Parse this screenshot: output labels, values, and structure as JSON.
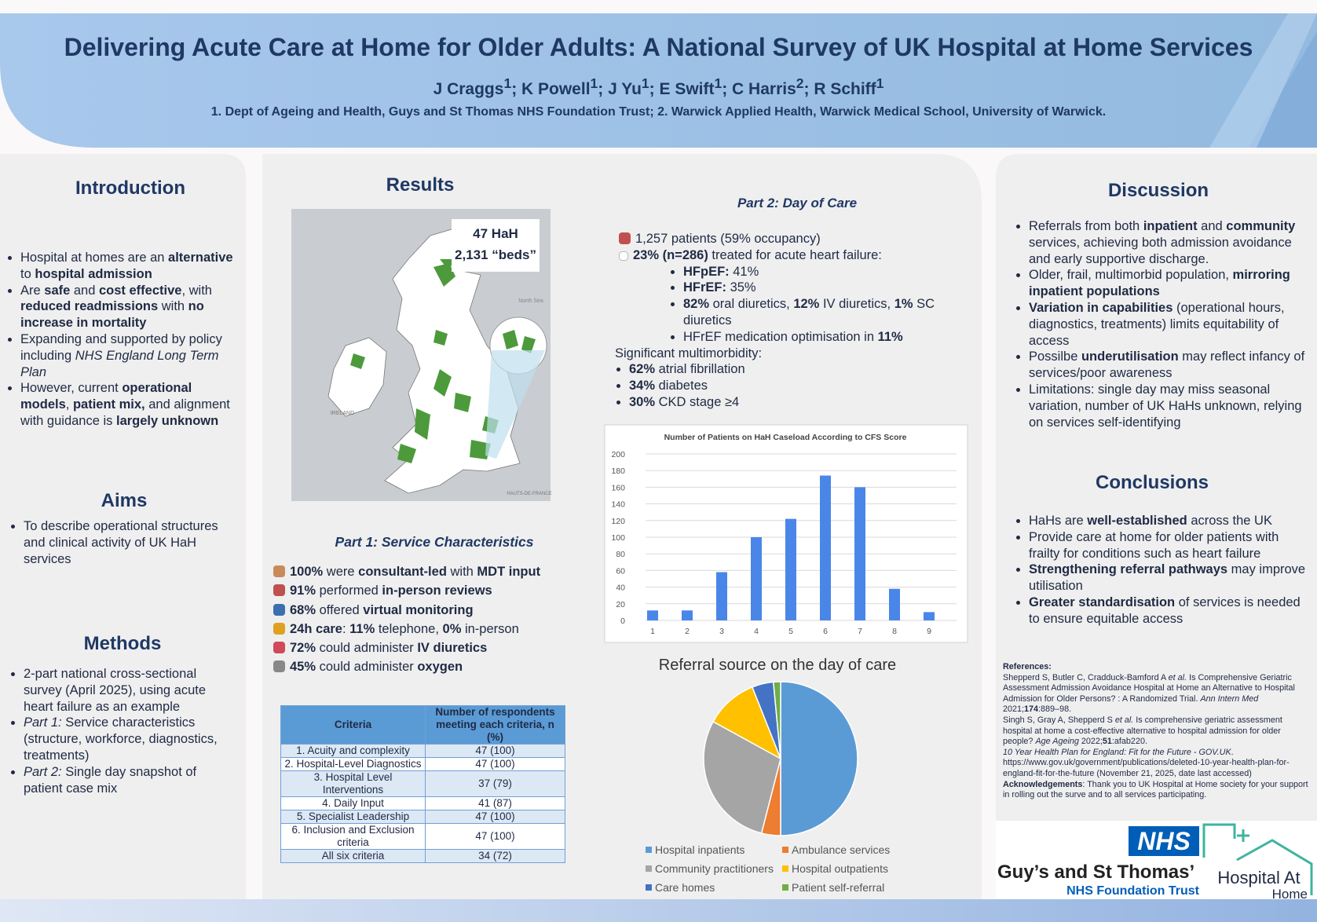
{
  "header": {
    "title": "Delivering Acute Care at Home for Older Adults: A National Survey of UK Hospital at Home Services",
    "authors": [
      "J Craggs",
      {
        "sup": "1"
      },
      "; K Powell",
      {
        "sup": "1"
      },
      "; J Yu",
      {
        "sup": "1"
      },
      "; E Swift",
      {
        "sup": "1"
      },
      "; C Harris",
      {
        "sup": "2"
      },
      "; R Schiff",
      {
        "sup": "1"
      }
    ],
    "affiliations": "1. Dept of Ageing and Health, Guys and St Thomas NHS Foundation Trust; 2. Warwick Applied Health, Warwick Medical School, University of Warwick."
  },
  "introduction": {
    "heading": "Introduction",
    "bullets": [
      [
        "Hospital at homes are an ",
        {
          "b": "alternative"
        },
        " to ",
        {
          "b": "hospital admission"
        }
      ],
      [
        "Are ",
        {
          "b": "safe"
        },
        " and ",
        {
          "b": "cost effective"
        },
        ", with ",
        {
          "b": "reduced readmissions"
        },
        " with ",
        {
          "b": "no increase in mortality"
        }
      ],
      [
        "Expanding and supported by policy including ",
        {
          "i": "NHS England Long Term Plan"
        }
      ],
      [
        "However, current ",
        {
          "b": "operational models"
        },
        ", ",
        {
          "b": "patient mix,"
        },
        " and alignment with guidance is ",
        {
          "b": "largely unknown"
        }
      ]
    ]
  },
  "aims": {
    "heading": "Aims",
    "bullets": [
      [
        "To describe operational structures and clinical activity of UK HaH services"
      ]
    ]
  },
  "methods": {
    "heading": "Methods",
    "bullets": [
      [
        "2-part national cross-sectional survey (April 2025), using acute heart failure as an example"
      ],
      [
        {
          "i": "Part 1:"
        },
        " Service characteristics (structure, workforce, diagnostics, treatments)"
      ],
      [
        {
          "i": "Part 2:"
        },
        " Single day snapshot of patient case mix"
      ]
    ]
  },
  "results": {
    "heading": "Results",
    "map": {
      "line1": "47 HaH",
      "line2": "2,131  “beds”",
      "labels": [
        "North Sea",
        "IRELAND",
        "HAUTS-DE-FRANCE"
      ]
    },
    "part1": {
      "heading": "Part 1: Service Characteristics",
      "items": [
        [
          {
            "b": "100%"
          },
          " were ",
          {
            "b": "consultant-led"
          },
          " with ",
          {
            "b": "MDT input"
          }
        ],
        [
          {
            "b": "91%"
          },
          " performed ",
          {
            "b": "in-person reviews"
          }
        ],
        [
          {
            "b": "68%"
          },
          " offered ",
          {
            "b": "virtual monitoring"
          }
        ],
        [
          {
            "b": "24h care"
          },
          ": ",
          {
            "b": "11%"
          },
          " telephone,  ",
          {
            "b": "0%"
          },
          " in-person"
        ],
        [
          {
            "b": "72%"
          },
          " could administer ",
          {
            "b": "IV diuretics"
          }
        ],
        [
          {
            "b": "45%"
          },
          " could administer ",
          {
            "b": "oxygen"
          }
        ]
      ]
    },
    "table": {
      "header": [
        "Criteria",
        "Number of respondents meeting each criteria, n (%)"
      ],
      "rows": [
        [
          "1. Acuity and complexity",
          "47 (100)"
        ],
        [
          "2. Hospital-Level Diagnostics",
          "47 (100)"
        ],
        [
          "3. Hospital Level Interventions",
          "37 (79)"
        ],
        [
          "4. Daily Input",
          "41 (87)"
        ],
        [
          "5. Specialist Leadership",
          "47 (100)"
        ],
        [
          "6. Inclusion and Exclusion criteria",
          "47 (100)"
        ],
        [
          "All six criteria",
          "34 (72)"
        ]
      ]
    },
    "part2": {
      "heading": "Part 2: Day of Care",
      "patients": [
        "1,257 patients (59% occupancy)"
      ],
      "heart_failure": [
        {
          "b": "23% (n=286)"
        },
        " treated for acute heart failure:"
      ],
      "heart_failure_items": [
        [
          {
            "b": "HFpEF:"
          },
          " 41%"
        ],
        [
          {
            "b": "HFrEF:"
          },
          " 35%"
        ],
        [
          {
            "b": "82%"
          },
          " oral diuretics, ",
          {
            "b": "12%"
          },
          " IV diuretics, ",
          {
            "b": "1%"
          },
          " SC diuretics"
        ],
        [
          "HFrEF medication optimisation in ",
          {
            "b": "11%"
          }
        ]
      ],
      "multimorbidity_heading": "Significant multimorbidity:",
      "multimorbidity": [
        [
          {
            "b": "62%"
          },
          " atrial fibrillation"
        ],
        [
          {
            "b": "34%"
          },
          " diabetes"
        ],
        [
          {
            "b": "30%"
          },
          " CKD stage ≥4"
        ]
      ]
    }
  },
  "chart_data": [
    {
      "type": "bar",
      "title": "Number of Patients on HaH Caseload According to CFS Score",
      "categories": [
        "1",
        "2",
        "3",
        "4",
        "5",
        "6",
        "7",
        "8",
        "9"
      ],
      "values": [
        12,
        12,
        58,
        100,
        122,
        174,
        160,
        38,
        10
      ],
      "color": "#4a86e8",
      "ylim": [
        0,
        200
      ],
      "yticks": [
        0,
        20,
        40,
        60,
        80,
        100,
        120,
        140,
        160,
        180,
        200
      ],
      "grid": true
    },
    {
      "type": "pie",
      "title": "Referral source on the day of care",
      "categories": [
        "Hospital inpatients",
        "Ambulance services",
        "Community practitioners",
        "Hospital outpatients",
        "Care homes",
        "Patient self-referral"
      ],
      "values": [
        50,
        4,
        29,
        11,
        4.5,
        1.5
      ],
      "colors": [
        "#5b9bd5",
        "#ed7d31",
        "#a5a5a5",
        "#ffc000",
        "#4472c4",
        "#70ad47"
      ]
    }
  ],
  "discussion": {
    "heading": "Discussion",
    "bullets": [
      [
        "Referrals from both ",
        {
          "b": "inpatient"
        },
        " and ",
        {
          "b": "community"
        },
        " services, achieving both admission avoidance and early supportive discharge."
      ],
      [
        "Older, frail, multimorbid population, ",
        {
          "b": "mirroring inpatient populations"
        }
      ],
      [
        {
          "b": "Variation in capabilities"
        },
        " (operational hours, diagnostics, treatments) limits equitability of access"
      ],
      [
        "Possilbe ",
        {
          "b": "underutilisation"
        },
        " may reflect infancy of services/poor awareness"
      ],
      [
        "Limitations: single day may miss seasonal variation, number of UK HaHs unknown, relying on services self-identifying"
      ]
    ]
  },
  "conclusions": {
    "heading": "Conclusions",
    "bullets": [
      [
        "HaHs are ",
        {
          "b": "well-established"
        },
        " across the UK"
      ],
      [
        "Provide care at home for older patients with frailty for conditions such as heart failure"
      ],
      [
        {
          "b": "Strengthening referral pathways"
        },
        " may improve utilisation"
      ],
      [
        {
          "b": "Greater standardisation"
        },
        " of services is needed to ensure equitable access"
      ]
    ]
  },
  "references": {
    "heading": "References:",
    "entries": [
      [
        "Shepperd S, Butler C, Cradduck-Bamford A ",
        {
          "i": "et al."
        },
        " Is Comprehensive Geriatric Assessment Admission Avoidance Hospital at Home an Alternative to Hospital Admission for Older Persons? : A Randomized Trial. ",
        {
          "i": "Ann Intern Med"
        },
        " 2021;",
        {
          "b": "174"
        },
        ":889–98."
      ],
      [
        "Singh S, Gray A, Shepperd S ",
        {
          "i": "et al."
        },
        " Is comprehensive geriatric assessment hospital at home a cost-effective alternative to hospital admission for older people? ",
        {
          "i": "Age Ageing"
        },
        " 2022;",
        {
          "b": "51"
        },
        ":afab220."
      ],
      [
        {
          "i": "10 Year Health Plan for England: Fit for the Future - GOV.UK"
        },
        ". https://www.gov.uk/government/publications/deleted-10-year-health-plan-for-england-fit-for-the-future (November 21, 2025, date last accessed)"
      ]
    ],
    "acknowledgements": [
      {
        "b": "Acknowledgements"
      },
      ": Thank you to UK Hospital at Home society for your support in rolling out the surve and to all services participating."
    ]
  },
  "logos": {
    "nhs": "NHS",
    "trust": "Guy’s and St Thomas’",
    "trust_sub": "NHS Foundation Trust",
    "hah_line1": "Hospital At",
    "hah_line2": "Home"
  }
}
